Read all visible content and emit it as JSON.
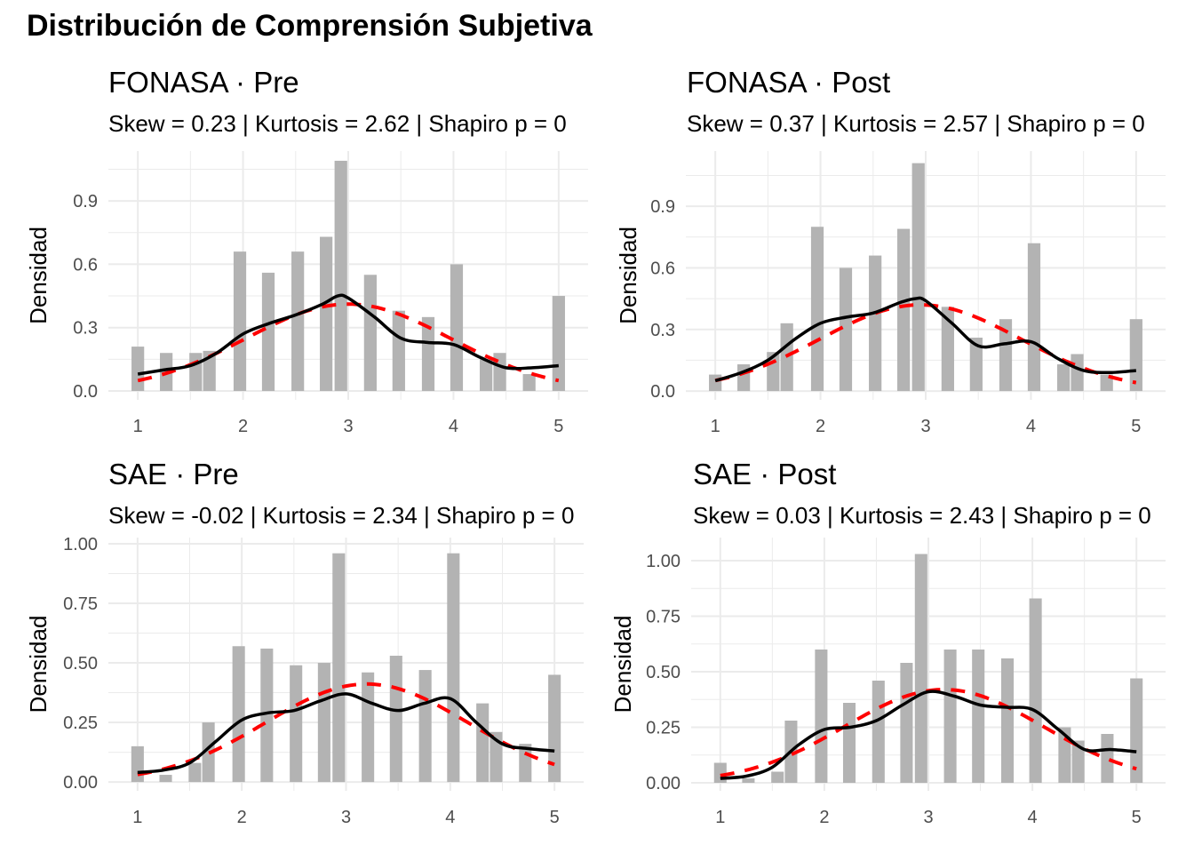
{
  "title": "Distribución de Comprensión Subjetiva",
  "chart_data": [
    {
      "type": "bar",
      "title": "FONASA · Pre",
      "subtitle": "Skew = 0.23 | Kurtosis = 2.62 | Shapiro p = 0",
      "xlabel": "",
      "ylabel": "Densidad",
      "xlim": [
        0.72,
        5.28
      ],
      "ylim": [
        -0.042,
        1.136
      ],
      "xticks": [
        1,
        2,
        3,
        4,
        5
      ],
      "xtick_labels": [
        "1",
        "2",
        "3",
        "4",
        "5"
      ],
      "yticks": [
        0,
        0.3,
        0.6,
        0.9
      ],
      "ytick_labels": [
        "0.0",
        "0.3",
        "0.6",
        "0.9"
      ],
      "bars": {
        "x": [
          1,
          1.27,
          1.55,
          1.68,
          1.97,
          2.24,
          2.52,
          2.79,
          2.93,
          3.21,
          3.48,
          3.76,
          4.03,
          4.31,
          4.44,
          4.72,
          5
        ],
        "values": [
          0.21,
          0.18,
          0.18,
          0.19,
          0.66,
          0.56,
          0.66,
          0.73,
          1.09,
          0.55,
          0.38,
          0.35,
          0.6,
          0.15,
          0.18,
          0.08,
          0.45
        ]
      },
      "kde": {
        "x": [
          1,
          1.25,
          1.5,
          1.75,
          2,
          2.25,
          2.5,
          2.75,
          2.9,
          3,
          3.25,
          3.5,
          3.75,
          4,
          4.25,
          4.5,
          4.75,
          5
        ],
        "y": [
          0.08,
          0.1,
          0.12,
          0.18,
          0.27,
          0.32,
          0.36,
          0.41,
          0.45,
          0.44,
          0.35,
          0.25,
          0.23,
          0.22,
          0.16,
          0.11,
          0.11,
          0.12
        ]
      },
      "normal_fit": {
        "mean": 3.0,
        "sd": 0.97
      }
    },
    {
      "type": "bar",
      "title": "FONASA · Post",
      "subtitle": "Skew = 0.37 | Kurtosis = 2.57 | Shapiro p = 0",
      "xlabel": "",
      "ylabel": "Densidad",
      "xlim": [
        0.72,
        5.28
      ],
      "ylim": [
        -0.043,
        1.169
      ],
      "xticks": [
        1,
        2,
        3,
        4,
        5
      ],
      "xtick_labels": [
        "1",
        "2",
        "3",
        "4",
        "5"
      ],
      "yticks": [
        0,
        0.3,
        0.6,
        0.9
      ],
      "ytick_labels": [
        "0.0",
        "0.3",
        "0.6",
        "0.9"
      ],
      "bars": {
        "x": [
          1,
          1.27,
          1.55,
          1.68,
          1.97,
          2.24,
          2.52,
          2.79,
          2.93,
          3.21,
          3.48,
          3.76,
          4.03,
          4.31,
          4.44,
          4.72,
          5
        ],
        "values": [
          0.08,
          0.13,
          0.19,
          0.33,
          0.8,
          0.6,
          0.66,
          0.79,
          1.11,
          0.41,
          0.26,
          0.35,
          0.72,
          0.13,
          0.18,
          0.08,
          0.35
        ]
      },
      "kde": {
        "x": [
          1,
          1.25,
          1.5,
          1.75,
          2,
          2.25,
          2.5,
          2.75,
          2.9,
          3,
          3.25,
          3.5,
          3.75,
          4,
          4.25,
          4.5,
          4.75,
          5
        ],
        "y": [
          0.05,
          0.09,
          0.15,
          0.25,
          0.33,
          0.36,
          0.38,
          0.43,
          0.45,
          0.44,
          0.33,
          0.22,
          0.23,
          0.24,
          0.16,
          0.1,
          0.09,
          0.1
        ]
      },
      "normal_fit": {
        "mean": 2.95,
        "sd": 0.95
      }
    },
    {
      "type": "bar",
      "title": "SAE · Pre",
      "subtitle": "Skew = -0.02 | Kurtosis = 2.34 | Shapiro p = 0",
      "xlabel": "",
      "ylabel": "Densidad",
      "xlim": [
        0.72,
        5.28
      ],
      "ylim": [
        -0.037,
        1.026
      ],
      "xticks": [
        1,
        2,
        3,
        4,
        5
      ],
      "xtick_labels": [
        "1",
        "2",
        "3",
        "4",
        "5"
      ],
      "yticks": [
        0,
        0.25,
        0.5,
        0.75,
        1.0
      ],
      "ytick_labels": [
        "0.00",
        "0.25",
        "0.50",
        "0.75",
        "1.00"
      ],
      "bars": {
        "x": [
          1,
          1.27,
          1.55,
          1.68,
          1.97,
          2.24,
          2.52,
          2.79,
          2.93,
          3.21,
          3.48,
          3.76,
          4.03,
          4.31,
          4.44,
          4.72,
          5
        ],
        "values": [
          0.15,
          0.03,
          0.08,
          0.25,
          0.57,
          0.56,
          0.49,
          0.5,
          0.96,
          0.46,
          0.53,
          0.47,
          0.96,
          0.33,
          0.21,
          0.16,
          0.45
        ]
      },
      "kde": {
        "x": [
          1,
          1.25,
          1.5,
          1.75,
          2,
          2.25,
          2.5,
          2.75,
          3,
          3.25,
          3.5,
          3.75,
          4,
          4.25,
          4.5,
          4.75,
          5
        ],
        "y": [
          0.04,
          0.05,
          0.08,
          0.17,
          0.26,
          0.29,
          0.3,
          0.34,
          0.37,
          0.33,
          0.3,
          0.33,
          0.35,
          0.25,
          0.16,
          0.14,
          0.13
        ]
      },
      "normal_fit": {
        "mean": 3.2,
        "sd": 0.97
      }
    },
    {
      "type": "bar",
      "title": "SAE · Post",
      "subtitle": "Skew = 0.03 | Kurtosis = 2.43 | Shapiro p = 0",
      "xlabel": "",
      "ylabel": "Densidad",
      "xlim": [
        0.72,
        5.28
      ],
      "ylim": [
        -0.036,
        1.104
      ],
      "xticks": [
        1,
        2,
        3,
        4,
        5
      ],
      "xtick_labels": [
        "1",
        "2",
        "3",
        "4",
        "5"
      ],
      "yticks": [
        0,
        0.25,
        0.5,
        0.75,
        1.0
      ],
      "ytick_labels": [
        "0.00",
        "0.25",
        "0.50",
        "0.75",
        "1.00"
      ],
      "bars": {
        "x": [
          1,
          1.27,
          1.55,
          1.68,
          1.97,
          2.24,
          2.52,
          2.79,
          2.93,
          3.21,
          3.48,
          3.76,
          4.03,
          4.31,
          4.44,
          4.72,
          5
        ],
        "values": [
          0.09,
          0.02,
          0.05,
          0.28,
          0.6,
          0.36,
          0.46,
          0.54,
          1.03,
          0.6,
          0.6,
          0.56,
          0.83,
          0.25,
          0.19,
          0.22,
          0.47
        ]
      },
      "kde": {
        "x": [
          1,
          1.25,
          1.5,
          1.75,
          2,
          2.25,
          2.5,
          2.75,
          3,
          3.25,
          3.5,
          3.75,
          4,
          4.25,
          4.5,
          4.75,
          5
        ],
        "y": [
          0.02,
          0.03,
          0.07,
          0.17,
          0.24,
          0.25,
          0.28,
          0.35,
          0.41,
          0.39,
          0.35,
          0.34,
          0.33,
          0.24,
          0.15,
          0.15,
          0.14
        ]
      },
      "normal_fit": {
        "mean": 3.15,
        "sd": 0.95
      }
    }
  ],
  "colors": {
    "bar": "#b3b3b3",
    "kde": "#000000",
    "normal": "#ff0000",
    "grid": "#ebebeb"
  }
}
